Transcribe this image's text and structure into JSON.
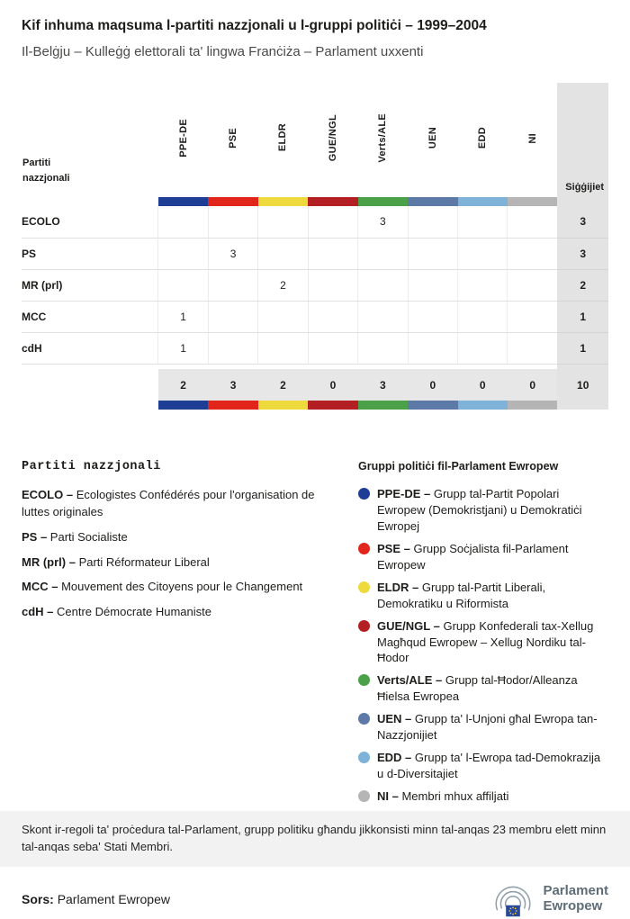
{
  "header": {
    "title": "Kif inhuma maqsuma l-partiti nazzjonali u l-gruppi politiċi – 1999–2004",
    "subtitle": "Il-Belġju – Kulleġġ elettorali ta' lingwa Franċiża – Parlament uxxenti"
  },
  "chart_data": {
    "type": "table",
    "title": "Kif inhuma maqsuma l-partiti nazzjonali u l-gruppi politiċi – 1999–2004",
    "row_header": "Partiti nazzjonali",
    "seats_header": "Siġġijiet",
    "groups": [
      {
        "code": "PPE-DE",
        "color": "#1e3d95"
      },
      {
        "code": "PSE",
        "color": "#e1251b"
      },
      {
        "code": "ELDR",
        "color": "#eeda3c"
      },
      {
        "code": "GUE/NGL",
        "color": "#b41f24"
      },
      {
        "code": "Verts/ALE",
        "color": "#4aa147"
      },
      {
        "code": "UEN",
        "color": "#5d79a7"
      },
      {
        "code": "EDD",
        "color": "#7fb2d8"
      },
      {
        "code": "NI",
        "color": "#b5b5b5"
      }
    ],
    "rows": [
      {
        "party": "ECOLO",
        "values": [
          "",
          "",
          "",
          "",
          "3",
          "",
          "",
          ""
        ],
        "seats": "3"
      },
      {
        "party": "PS",
        "values": [
          "",
          "3",
          "",
          "",
          "",
          "",
          "",
          ""
        ],
        "seats": "3"
      },
      {
        "party": "MR (prl)",
        "values": [
          "",
          "",
          "2",
          "",
          "",
          "",
          "",
          ""
        ],
        "seats": "2"
      },
      {
        "party": "MCC",
        "values": [
          "1",
          "",
          "",
          "",
          "",
          "",
          "",
          ""
        ],
        "seats": "1"
      },
      {
        "party": "cdH",
        "values": [
          "1",
          "",
          "",
          "",
          "",
          "",
          "",
          ""
        ],
        "seats": "1"
      }
    ],
    "totals": {
      "values": [
        "2",
        "3",
        "2",
        "0",
        "3",
        "0",
        "0",
        "0"
      ],
      "seats": "10"
    }
  },
  "legend_parties": {
    "title": "Partiti nazzjonali",
    "items": [
      {
        "code": "ECOLO",
        "desc": "Ecologistes Confédérés pour l'organisation de luttes originales"
      },
      {
        "code": "PS",
        "desc": "Parti Socialiste"
      },
      {
        "code": "MR (prl)",
        "desc": "Parti Réformateur Liberal"
      },
      {
        "code": "MCC",
        "desc": "Mouvement des Citoyens pour le Changement"
      },
      {
        "code": "cdH",
        "desc": "Centre Démocrate Humaniste"
      }
    ]
  },
  "legend_groups": {
    "title": "Gruppi politiċi fil-Parlament Ewropew",
    "items": [
      {
        "code": "PPE-DE",
        "desc": "Grupp tal-Partit Popolari Ewropew (Demokristjani) u Demokratiċi Ewropej"
      },
      {
        "code": "PSE",
        "desc": "Grupp Soċjalista fil-Parlament Ewropew"
      },
      {
        "code": "ELDR",
        "desc": "Grupp tal-Partit Liberali, Demokratiku u Riformista"
      },
      {
        "code": "GUE/NGL",
        "desc": "Grupp Konfederali tax-Xellug Magħqud Ewropew – Xellug Nordiku tal-Ħodor"
      },
      {
        "code": "Verts/ALE",
        "desc": "Grupp tal-Ħodor/Alleanza Ħielsa Ewropea"
      },
      {
        "code": "UEN",
        "desc": "Grupp ta' l-Unjoni għal Ewropa tan-Nazzjonijiet"
      },
      {
        "code": "EDD",
        "desc": "Grupp ta' l-Ewropa tad-Demokrazija u d-Diversitajiet"
      },
      {
        "code": "NI",
        "desc": "Membri mhux affiljati"
      }
    ]
  },
  "footnote": {
    "text": "Skont ir-regoli ta' proċedura tal-Parlament, grupp politiku għandu jikkonsisti minn tal-anqas 23 membru elett minn tal-anqas seba' Stati Membri."
  },
  "footer": {
    "source_label": "Sors:",
    "source_value": "Parlament Ewropew",
    "logo_line1": "Parlament",
    "logo_line2": "Ewropew"
  },
  "colors": {
    "bottom_bar": "#1e3d95",
    "seats_column_bg": "#e3e3e3",
    "footnote_bg": "#f2f2f2"
  }
}
